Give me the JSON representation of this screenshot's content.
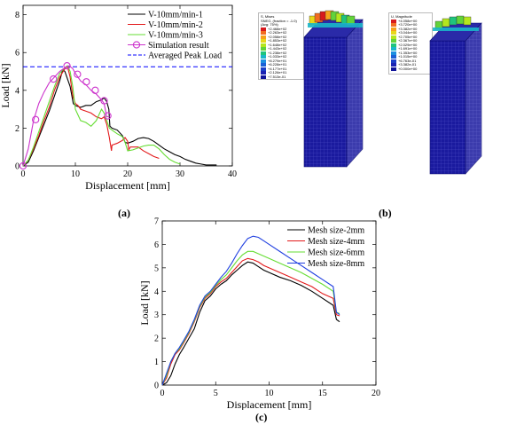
{
  "panel_labels": {
    "a": "(a)",
    "b": "(b)",
    "c": "(c)"
  },
  "fea_panel": {
    "stress_legend_title": [
      "S, Mises",
      "SNEG, (fraction = -1.0)",
      "(Avg: 75%)"
    ],
    "stress_legend_values": [
      "+2.468e+02",
      "+2.263e+02",
      "+2.058e+02",
      "+1.853e+02",
      "+1.648e+02",
      "+1.443e+02",
      "+1.238e+02",
      "+1.033e+02",
      "+8.279e+01",
      "+6.228e+01",
      "+4.177e+01",
      "+2.126e+01",
      "+7.513e-01"
    ],
    "disp_legend_title": [
      "U, Magnitude"
    ],
    "disp_legend_values": [
      "+4.058e+00",
      "+3.720e+00",
      "+3.382e+00",
      "+3.044e+00",
      "+2.705e+00",
      "+2.367e+00",
      "+2.029e+00",
      "+1.691e+00",
      "+1.353e+00",
      "+1.015e+00",
      "+6.763e-01",
      "+3.382e-01",
      "+0.000e+00"
    ],
    "legend_colors": [
      "#d7191c",
      "#f26c21",
      "#f7a21b",
      "#e8d71a",
      "#b5e61d",
      "#62d33a",
      "#1fc47d",
      "#19b6c9",
      "#1c8fe0",
      "#1960d6",
      "#1a3fc8",
      "#1a22b3",
      "#10149a"
    ],
    "mesh_color": "#1a1a9e"
  },
  "chart_data": [
    {
      "type": "line",
      "panel": "(a)",
      "xlabel": "Displacement [mm]",
      "ylabel": "Load [kN]",
      "xlim": [
        0,
        40
      ],
      "ylim": [
        0,
        8.5
      ],
      "xticks": [
        0,
        10,
        20,
        30,
        40
      ],
      "yticks": [
        0,
        2,
        4,
        6,
        8
      ],
      "reference_line": {
        "name": "Averaged Peak Load",
        "y": 5.25,
        "color": "#0000ff"
      },
      "series": [
        {
          "name": "V-10mm/min-1",
          "color": "#000000",
          "x": [
            0,
            1,
            2,
            3,
            4,
            5,
            6,
            7,
            7.6,
            8,
            8.5,
            9,
            9.6,
            10,
            11,
            12,
            13,
            14,
            15,
            15.5,
            16,
            16.4,
            16.6,
            17,
            18,
            19,
            19.5,
            20,
            21,
            22,
            23,
            24,
            25,
            26,
            27,
            28,
            29,
            30,
            31,
            32,
            33,
            34,
            35,
            36,
            37
          ],
          "y": [
            0,
            0.2,
            0.8,
            1.5,
            2.2,
            2.9,
            3.7,
            4.5,
            5.1,
            5.0,
            4.6,
            4.2,
            3.3,
            3.2,
            3.1,
            3.2,
            3.2,
            3.4,
            3.5,
            3.6,
            3.4,
            3.0,
            2.1,
            2.0,
            1.9,
            1.6,
            1.25,
            1.2,
            1.3,
            1.45,
            1.5,
            1.45,
            1.3,
            1.1,
            0.9,
            0.75,
            0.6,
            0.5,
            0.35,
            0.25,
            0.15,
            0.1,
            0.05,
            0.05,
            0.05
          ]
        },
        {
          "name": "V-10mm/min-2",
          "color": "#e31a1c",
          "x": [
            0,
            1,
            2,
            3,
            4,
            5,
            6,
            7,
            8,
            8.5,
            9,
            9.5,
            10,
            10.5,
            11,
            12,
            13,
            14,
            15,
            15.5,
            16,
            16.5,
            16.9,
            17,
            18,
            19,
            19.5,
            20,
            20.2,
            20.5,
            21,
            22,
            23,
            24,
            25,
            26
          ],
          "y": [
            0,
            0.3,
            0.9,
            1.6,
            2.4,
            3.1,
            4.0,
            4.7,
            5.15,
            5.25,
            4.7,
            3.7,
            3.3,
            3.2,
            3.0,
            2.9,
            2.8,
            2.6,
            2.5,
            2.6,
            2.2,
            1.5,
            0.8,
            1.1,
            1.2,
            1.35,
            1.5,
            1.3,
            0.85,
            1.0,
            1.0,
            1.0,
            0.8,
            0.65,
            0.5,
            0.4
          ]
        },
        {
          "name": "V-10mm/min-3",
          "color": "#66dd33",
          "x": [
            0,
            1,
            2,
            3,
            4,
            5,
            6,
            7,
            8,
            8.5,
            9,
            9.5,
            10,
            10.5,
            11,
            12,
            13,
            14,
            14.5,
            15,
            15.5,
            16,
            16.5,
            17,
            18,
            19,
            19.5,
            20,
            21,
            22,
            23,
            24,
            25,
            26,
            27,
            28,
            29,
            30
          ],
          "y": [
            0,
            0.3,
            1.0,
            1.8,
            2.6,
            3.4,
            4.2,
            4.9,
            5.2,
            5.3,
            5.0,
            4.2,
            3.0,
            2.7,
            2.4,
            2.3,
            2.1,
            2.4,
            2.7,
            3.0,
            2.8,
            2.4,
            2.0,
            1.9,
            1.7,
            1.55,
            1.25,
            0.8,
            0.85,
            0.95,
            1.05,
            1.1,
            1.1,
            0.9,
            0.6,
            0.35,
            0.2,
            0.1
          ]
        },
        {
          "name": "Simulation result",
          "color": "#cc33cc",
          "marker": "circle",
          "x": [
            0,
            1,
            2,
            3,
            4,
            5,
            6,
            7,
            8,
            8.8,
            9.5,
            10,
            11,
            12,
            13,
            14,
            15,
            15.5,
            16,
            16.5
          ],
          "y": [
            0,
            0.9,
            2.4,
            3.3,
            3.9,
            4.4,
            4.7,
            5.0,
            5.2,
            5.3,
            5.15,
            4.9,
            4.5,
            4.3,
            4.0,
            3.8,
            3.5,
            3.3,
            2.6,
            2.6
          ],
          "marker_x": [
            0,
            2.4,
            5.8,
            8.4,
            10.4,
            12.1,
            13.8,
            15.5,
            16.2
          ],
          "marker_y": [
            0,
            2.45,
            4.6,
            5.3,
            4.85,
            4.45,
            4.0,
            3.45,
            2.65
          ]
        }
      ]
    },
    {
      "type": "line",
      "panel": "(c)",
      "xlabel": "Displacement [mm]",
      "ylabel": "Load [kN]",
      "xlim": [
        0,
        20
      ],
      "ylim": [
        0,
        7
      ],
      "xticks": [
        0,
        5,
        10,
        15,
        20
      ],
      "yticks": [
        0,
        1,
        2,
        3,
        4,
        5,
        6,
        7
      ],
      "series": [
        {
          "name": "Mesh size-2mm",
          "color": "#000000",
          "x": [
            0,
            0.4,
            0.8,
            1.2,
            1.6,
            2,
            2.5,
            3,
            3.5,
            4,
            4.5,
            5,
            5.5,
            6,
            6.5,
            7,
            7.5,
            8,
            8.5,
            9,
            9.5,
            10,
            11,
            12,
            13,
            14,
            15,
            16,
            16.3,
            16.6
          ],
          "y": [
            0,
            0.1,
            0.4,
            0.9,
            1.3,
            1.6,
            2.0,
            2.4,
            3.1,
            3.6,
            3.8,
            4.1,
            4.3,
            4.45,
            4.7,
            4.9,
            5.1,
            5.25,
            5.2,
            5.05,
            4.9,
            4.8,
            4.6,
            4.45,
            4.25,
            4.0,
            3.7,
            3.4,
            2.8,
            2.7
          ]
        },
        {
          "name": "Mesh size-4mm",
          "color": "#e31a1c",
          "x": [
            0,
            0.4,
            0.8,
            1.2,
            1.6,
            2,
            2.5,
            3,
            3.5,
            4,
            4.5,
            5,
            5.5,
            6,
            6.5,
            7,
            7.5,
            8,
            8.5,
            9,
            9.5,
            10,
            11,
            12,
            13,
            14,
            15,
            16,
            16.3,
            16.6
          ],
          "y": [
            0,
            0.3,
            0.9,
            1.3,
            1.5,
            1.8,
            2.2,
            2.7,
            3.3,
            3.7,
            3.9,
            4.2,
            4.4,
            4.55,
            4.8,
            5.05,
            5.3,
            5.4,
            5.35,
            5.25,
            5.1,
            5.0,
            4.8,
            4.6,
            4.4,
            4.2,
            3.9,
            3.7,
            3.0,
            2.95
          ]
        },
        {
          "name": "Mesh size-6mm",
          "color": "#66dd33",
          "x": [
            0,
            0.4,
            0.8,
            1.2,
            1.6,
            2,
            2.5,
            3,
            3.5,
            4,
            4.5,
            5,
            5.5,
            6,
            6.5,
            7,
            7.5,
            8,
            8.5,
            9,
            9.5,
            10,
            11,
            12,
            13,
            14,
            15,
            16,
            16.3,
            16.6
          ],
          "y": [
            0,
            0.4,
            1.0,
            1.35,
            1.55,
            1.85,
            2.25,
            2.75,
            3.35,
            3.75,
            3.95,
            4.25,
            4.5,
            4.7,
            5.0,
            5.3,
            5.55,
            5.7,
            5.7,
            5.6,
            5.5,
            5.4,
            5.2,
            5.0,
            4.8,
            4.55,
            4.3,
            4.0,
            3.1,
            3.05
          ]
        },
        {
          "name": "Mesh size-8mm",
          "color": "#1f3fe0",
          "x": [
            0,
            0.4,
            0.8,
            1.2,
            1.6,
            2,
            2.5,
            3,
            3.5,
            4,
            4.5,
            5,
            5.5,
            6,
            6.5,
            7,
            7.5,
            8,
            8.5,
            9,
            9.5,
            10,
            11,
            12,
            13,
            14,
            15,
            16,
            16.3,
            16.6
          ],
          "y": [
            0,
            0.5,
            1.0,
            1.35,
            1.6,
            1.9,
            2.3,
            2.8,
            3.4,
            3.8,
            4.0,
            4.3,
            4.6,
            4.85,
            5.2,
            5.6,
            5.95,
            6.25,
            6.35,
            6.3,
            6.15,
            6.0,
            5.7,
            5.4,
            5.1,
            4.8,
            4.5,
            4.2,
            3.1,
            3.0
          ]
        }
      ]
    }
  ]
}
